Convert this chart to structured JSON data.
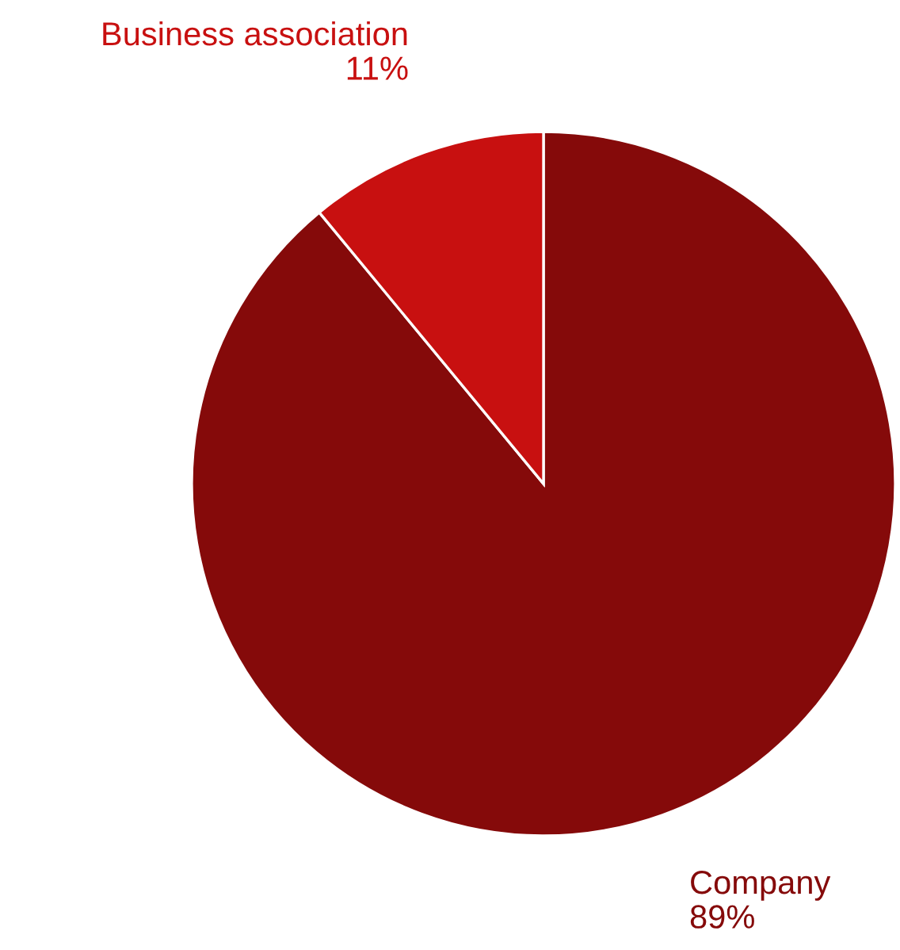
{
  "chart_data": {
    "type": "pie",
    "categories": [
      "Company",
      "Business association"
    ],
    "values": [
      89,
      11
    ],
    "colors": [
      "#850a0a",
      "#c81010"
    ],
    "value_labels": [
      "89%",
      "11%"
    ]
  }
}
